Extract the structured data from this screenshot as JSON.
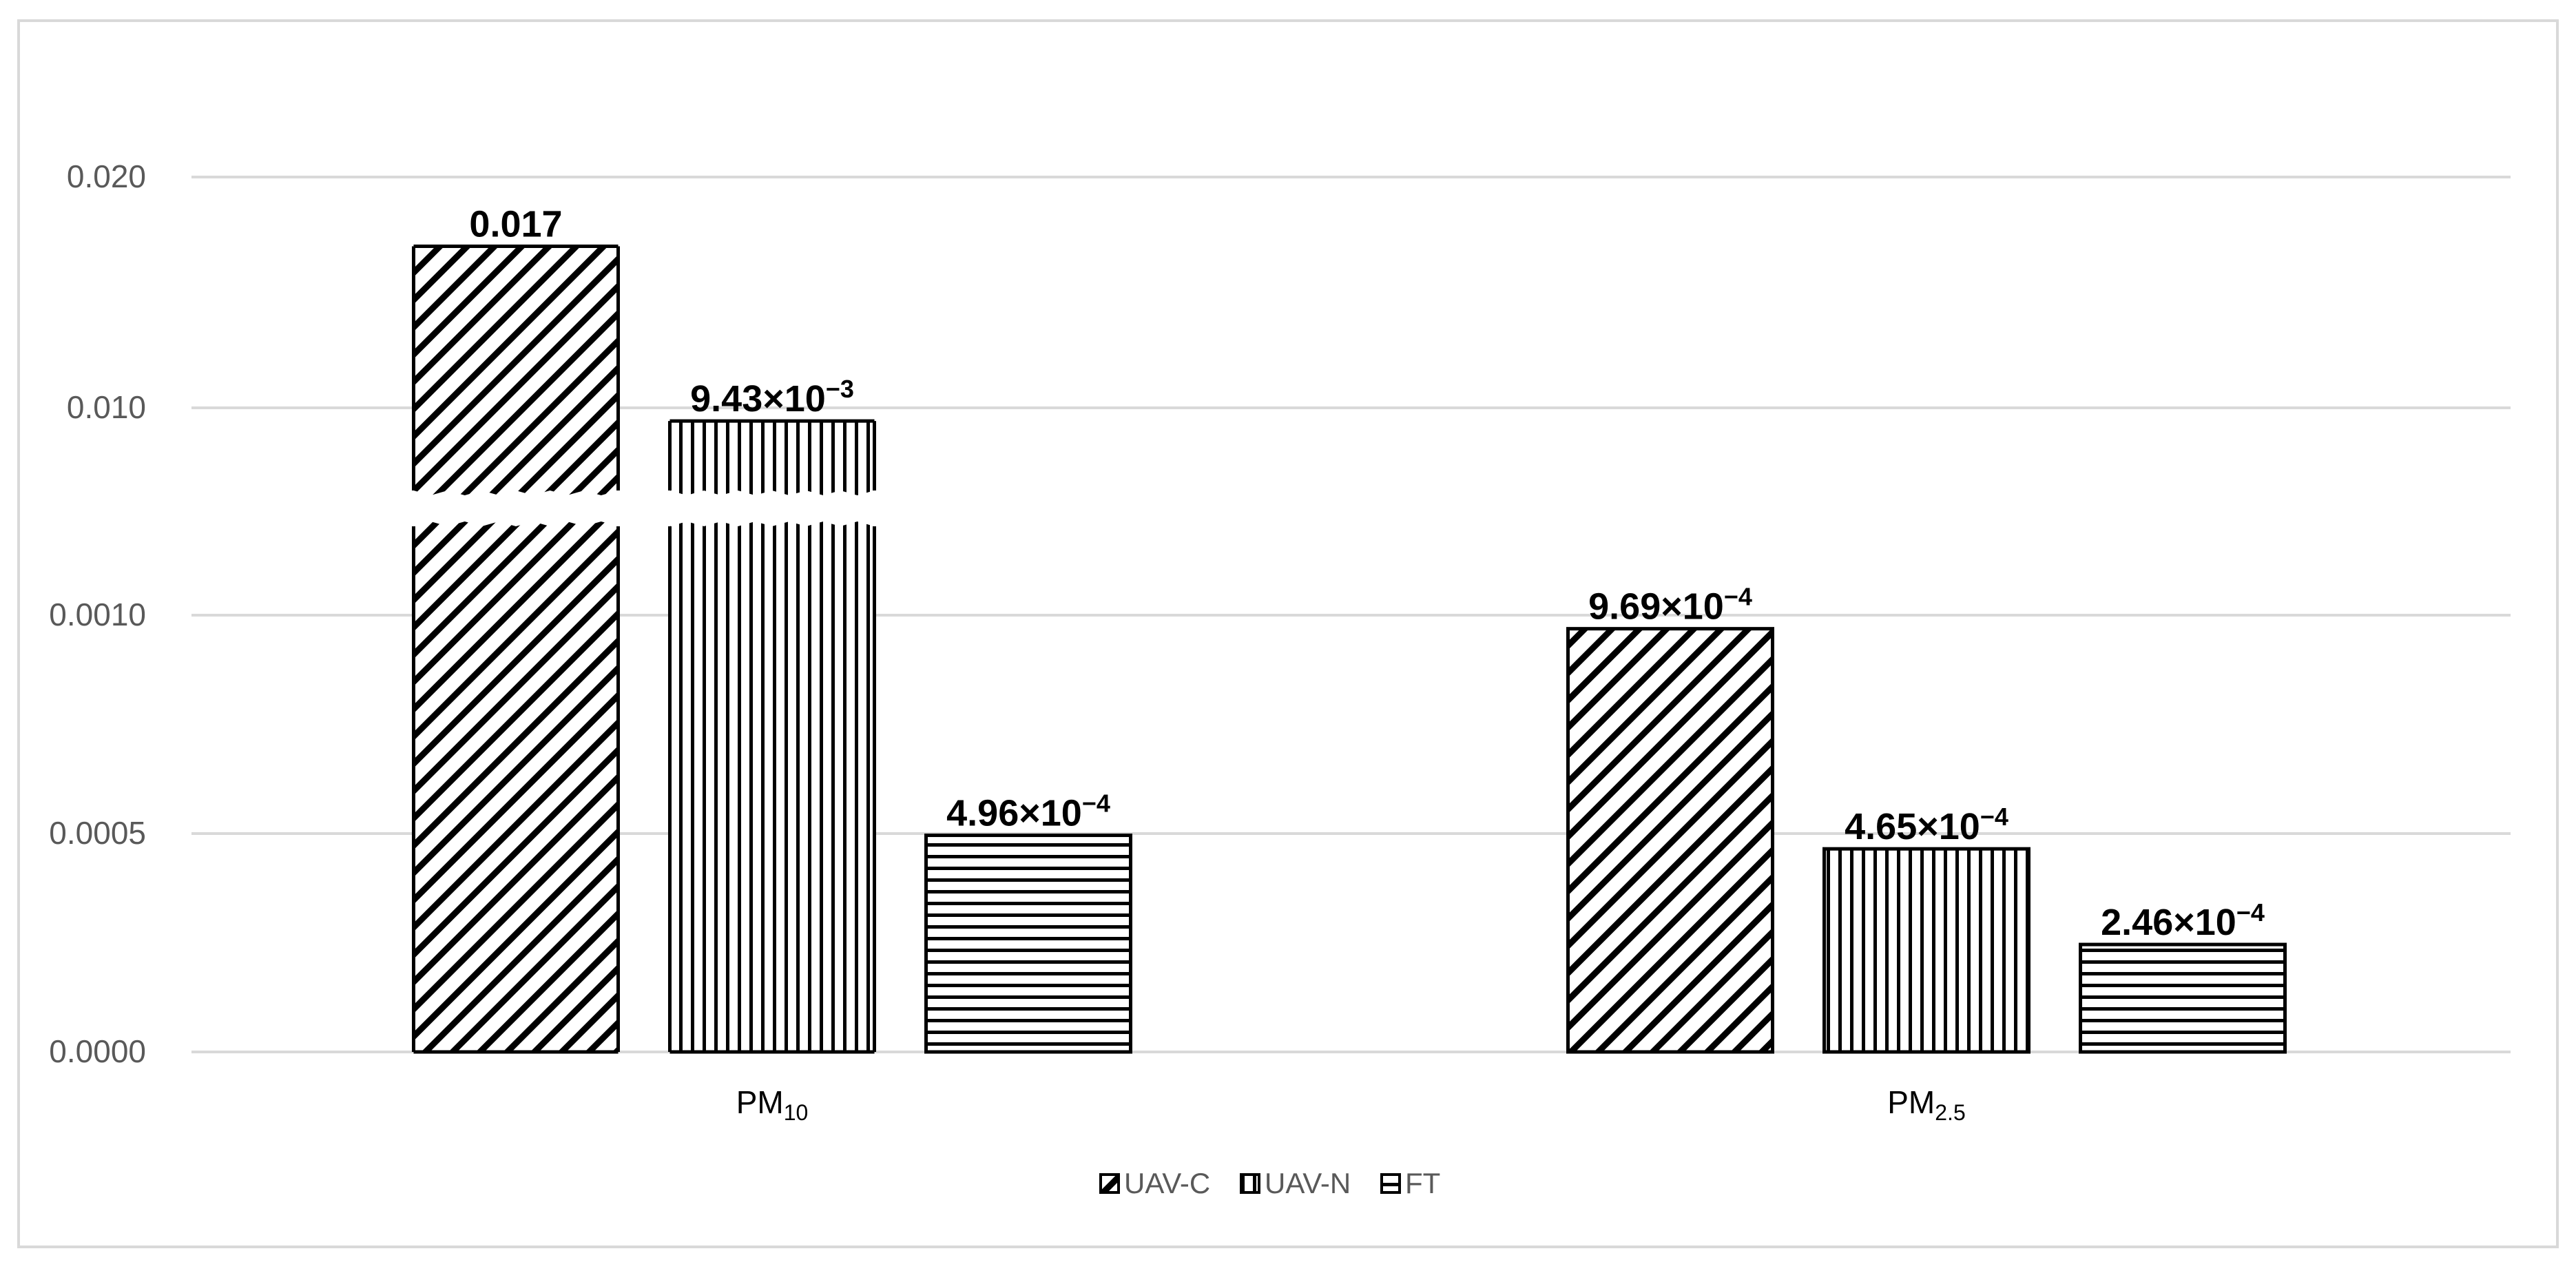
{
  "chart_data": {
    "type": "bar",
    "title": "",
    "xlabel": "",
    "ylabel": "",
    "categories": [
      {
        "base": "PM",
        "sub": "10"
      },
      {
        "base": "PM",
        "sub": "2.5"
      }
    ],
    "series": [
      {
        "name": "UAV-C",
        "pattern": "diagonal-hatch",
        "values": [
          0.017,
          0.000969
        ]
      },
      {
        "name": "UAV-N",
        "pattern": "vertical-hatch",
        "values": [
          0.00943,
          0.000465
        ]
      },
      {
        "name": "FT",
        "pattern": "horizontal-hatch",
        "values": [
          0.000496,
          0.000246
        ]
      }
    ],
    "data_labels": [
      [
        {
          "main": "0.017",
          "exp": ""
        },
        {
          "main": "9.69×10",
          "exp": "−4"
        }
      ],
      [
        {
          "main": "9.43×10",
          "exp": "−3"
        },
        {
          "main": "4.65×10",
          "exp": "−4"
        }
      ],
      [
        {
          "main": "4.96×10",
          "exp": "−4"
        },
        {
          "main": "2.46×10",
          "exp": "−4"
        }
      ]
    ],
    "y_axis": {
      "scale": "broken",
      "lower_segment": {
        "range": [
          0,
          0.001
        ],
        "ticks": [
          "0.0000",
          "0.0005",
          "0.0010"
        ]
      },
      "upper_segment": {
        "range": [
          0.01,
          0.02
        ],
        "ticks": [
          "0.010",
          "0.020"
        ]
      },
      "tick_values": [
        0,
        0.0005,
        0.001,
        0.01,
        0.02
      ]
    },
    "axis_break_on_bars": true,
    "grid": true,
    "legend": {
      "position": "bottom-center"
    },
    "colors": {
      "bar_stroke": "#000000",
      "bar_fill": "#ffffff",
      "grid": "#d9d9d9",
      "tick_text": "#595959",
      "frame": "#d9d9d9"
    }
  }
}
